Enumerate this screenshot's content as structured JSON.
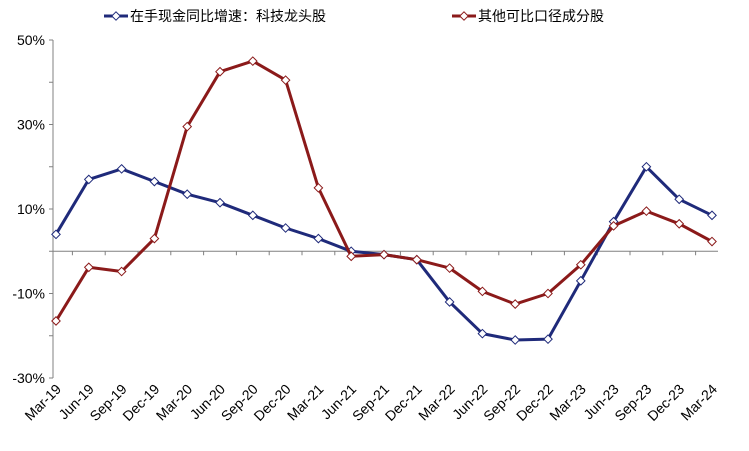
{
  "chart_data": {
    "type": "line",
    "categories": [
      "Mar-19",
      "Jun-19",
      "Sep-19",
      "Dec-19",
      "Mar-20",
      "Jun-20",
      "Sep-20",
      "Dec-20",
      "Mar-21",
      "Jun-21",
      "Sep-21",
      "Dec-21",
      "Mar-22",
      "Jun-22",
      "Sep-22",
      "Dec-22",
      "Mar-23",
      "Jun-23",
      "Sep-23",
      "Dec-23",
      "Mar-24"
    ],
    "series": [
      {
        "name": "在手现金同比增速：科技龙头股",
        "color": "#1f2a7a",
        "values": [
          4,
          17,
          19.5,
          16.5,
          13.5,
          11.5,
          8.5,
          5.5,
          3,
          0,
          -0.8,
          -2,
          -12,
          -19.5,
          -21,
          -20.8,
          -7,
          7,
          20,
          12.3,
          8.5
        ]
      },
      {
        "name": "其他可比口径成分股",
        "color": "#8b1a1a",
        "values": [
          -16.5,
          -3.8,
          -4.8,
          3,
          29.5,
          42.5,
          45,
          40.5,
          15,
          -1.2,
          -0.8,
          -2,
          -4,
          -9.5,
          -12.5,
          -10,
          -3.2,
          6,
          9.5,
          6.5,
          2.3
        ]
      }
    ],
    "y_ticks": [
      "50%",
      "30%",
      "10%",
      "-10%",
      "-30%"
    ],
    "y_tick_values": [
      50,
      30,
      10,
      -10,
      -30
    ],
    "ylim": [
      -30,
      50
    ],
    "grid": false,
    "legend_position": "top",
    "marker": "hollow diamond"
  }
}
